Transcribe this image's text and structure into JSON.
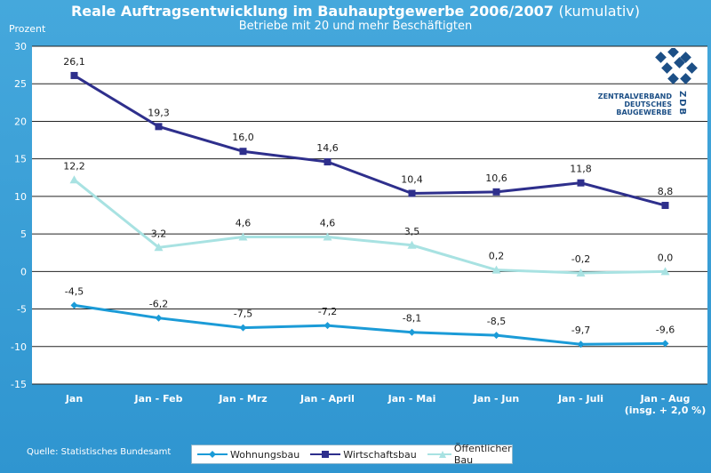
{
  "header": {
    "title": "Reale Auftragsentwicklung im Bauhauptgewerbe 2006/2007",
    "title_suffix": "(kumulativ)",
    "subtitle": "Betriebe mit 20 und mehr Beschäftigten"
  },
  "source": "Quelle: Statistisches Bundesamt",
  "logo": {
    "line1": "ZENTRALVERBAND",
    "line2": "DEUTSCHES",
    "line3": "BAUGEWERBE",
    "abbr": "ZDB"
  },
  "colors": {
    "background": "#3aa0d8",
    "plot": "#ffffff",
    "wohnungsbau": "#1b9bd7",
    "wirtschaftsbau": "#2e2f8c",
    "oeffentlicher": "#a8e2e2",
    "logo": "#1c4f86"
  },
  "chart_data": {
    "type": "line",
    "title": "Reale Auftragsentwicklung im Bauhauptgewerbe 2006/2007 (kumulativ)",
    "subtitle": "Betriebe mit 20 und mehr Beschäftigten",
    "ylabel": "Prozent",
    "xlabel": "",
    "ylim": [
      -15,
      30
    ],
    "yticks": [
      -15,
      -10,
      -5,
      0,
      5,
      10,
      15,
      20,
      25,
      30
    ],
    "categories": [
      "Jan",
      "Jan - Feb",
      "Jan - Mrz",
      "Jan - April",
      "Jan - Mai",
      "Jan - Jun",
      "Jan - Juli",
      "Jan - Aug"
    ],
    "last_category_note": "(insg. + 2,0 %)",
    "grid": true,
    "legend_position": "bottom",
    "series": [
      {
        "name": "Wohnungsbau",
        "color": "#1b9bd7",
        "marker": "diamond",
        "values": [
          -4.5,
          -6.2,
          -7.5,
          -7.2,
          -8.1,
          -8.5,
          -9.7,
          -9.6
        ],
        "labels": [
          "-4,5",
          "-6,2",
          "-7,5",
          "-7,2",
          "-8,1",
          "-8,5",
          "-9,7",
          "-9,6"
        ]
      },
      {
        "name": "Wirtschaftsbau",
        "color": "#2e2f8c",
        "marker": "square",
        "values": [
          26.1,
          19.3,
          16.0,
          14.6,
          10.4,
          10.6,
          11.8,
          8.8
        ],
        "labels": [
          "26,1",
          "19,3",
          "16,0",
          "14,6",
          "10,4",
          "10,6",
          "11,8",
          "8,8"
        ]
      },
      {
        "name": "Öffentlicher Bau",
        "color": "#a8e2e2",
        "marker": "triangle",
        "values": [
          12.2,
          3.2,
          4.6,
          4.6,
          3.5,
          0.2,
          -0.2,
          0.0
        ],
        "labels": [
          "12,2",
          "3,2",
          "4,6",
          "4,6",
          "3,5",
          "0,2",
          "-0,2",
          "0,0"
        ]
      }
    ]
  }
}
